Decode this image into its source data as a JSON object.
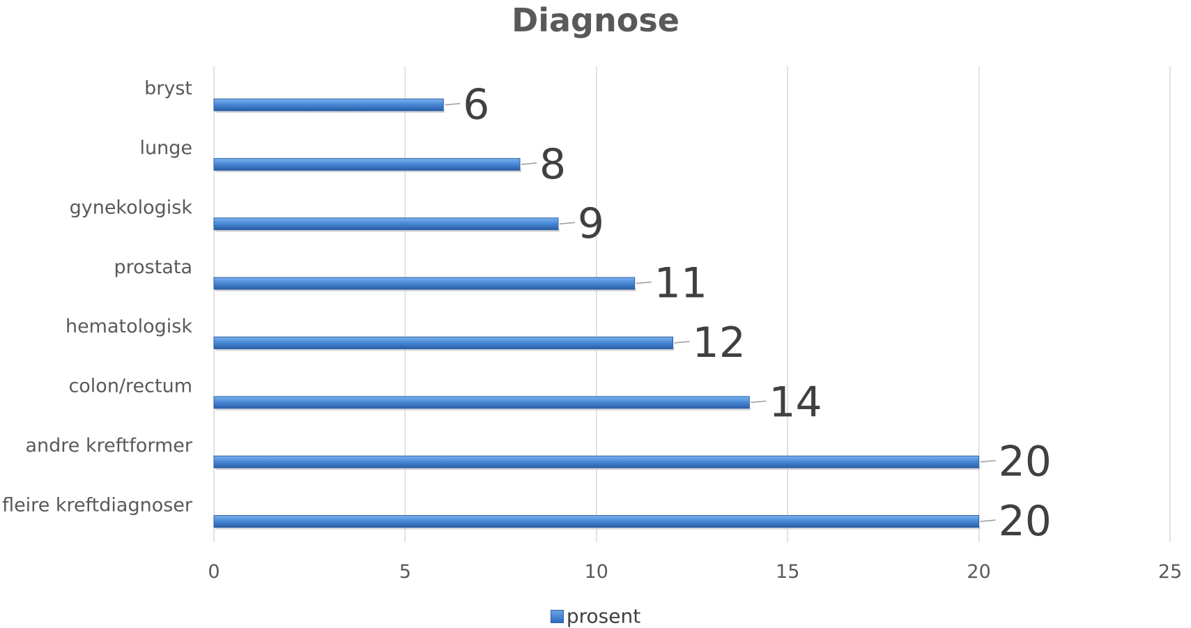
{
  "chart_data": {
    "type": "bar",
    "orientation": "horizontal",
    "title": "Diagnose",
    "categories": [
      "bryst",
      "lunge",
      "gynekologisk",
      "prostata",
      "hematologisk",
      "colon/rectum",
      "andre kreftformer",
      "fleire kreftdiagnoser"
    ],
    "series": [
      {
        "name": "prosent",
        "values": [
          6,
          8,
          9,
          11,
          12,
          14,
          20,
          20
        ]
      }
    ],
    "data_labels": [
      "6",
      "8",
      "9",
      "11",
      "12",
      "14",
      "20",
      "20"
    ],
    "xlim": [
      0,
      25
    ],
    "x_ticks": [
      "0",
      "5",
      "10",
      "15",
      "20",
      "25"
    ],
    "xlabel": "",
    "ylabel": "",
    "grid": true,
    "legend_position": "bottom",
    "colors": {
      "bar": "#3f7fd1",
      "bar_dark": "#2a5ea6",
      "grid": "#d9d9d9",
      "text": "#595959",
      "label": "#404040"
    }
  }
}
